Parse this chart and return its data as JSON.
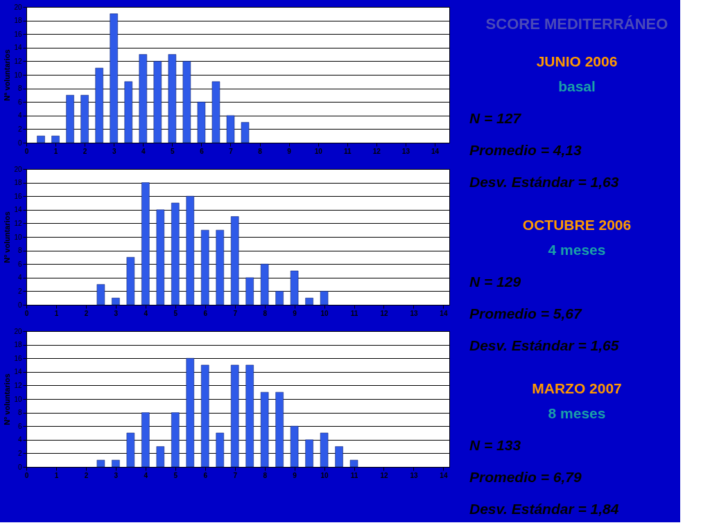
{
  "chart_data": [
    {
      "type": "bar",
      "ylabel": "Nª voluntarios",
      "x": [
        0.5,
        1,
        1.5,
        2,
        2.5,
        3,
        3.5,
        4,
        4.5,
        5,
        5.5,
        6,
        6.5,
        7,
        7.5
      ],
      "values": [
        1,
        1,
        7,
        7,
        11,
        19,
        9,
        13,
        12,
        13,
        12,
        6,
        9,
        4,
        3
      ],
      "color": "#2f5ae8",
      "xlim": [
        0,
        14.5
      ],
      "xticks": [
        0,
        1,
        2,
        3,
        4,
        5,
        6,
        7,
        8,
        9,
        10,
        11,
        12,
        13,
        14
      ],
      "ylim": [
        0,
        20
      ],
      "yticks": [
        0,
        2,
        4,
        6,
        8,
        10,
        12,
        14,
        16,
        18,
        20
      ],
      "grid": "y"
    },
    {
      "type": "bar",
      "ylabel": "Nº voluntarios",
      "x": [
        2.5,
        3,
        3.5,
        4,
        4.5,
        5,
        5.5,
        6,
        6.5,
        7,
        7.5,
        8,
        8.5,
        9,
        9.5,
        10
      ],
      "values": [
        3,
        1,
        7,
        18,
        14,
        15,
        16,
        11,
        11,
        13,
        4,
        6,
        2,
        5,
        1,
        2
      ],
      "color": "#2f5ae8",
      "xlim": [
        0,
        14.2
      ],
      "xticks": [
        0,
        1,
        2,
        3,
        4,
        5,
        6,
        7,
        8,
        9,
        10,
        11,
        12,
        13,
        14
      ],
      "ylim": [
        0,
        20
      ],
      "yticks": [
        0,
        2,
        4,
        6,
        8,
        10,
        12,
        14,
        16,
        18,
        20
      ],
      "grid": "y"
    },
    {
      "type": "bar",
      "ylabel": "Nº voluntarios",
      "x": [
        2.5,
        3,
        3.5,
        4,
        4.5,
        5,
        5.5,
        6,
        6.5,
        7,
        7.5,
        8,
        8.5,
        9,
        9.5,
        10,
        10.5,
        11
      ],
      "values": [
        1,
        1,
        5,
        8,
        3,
        8,
        16,
        15,
        5,
        15,
        15,
        11,
        11,
        6,
        4,
        5,
        3,
        1
      ],
      "color": "#2f5ae8",
      "xlim": [
        0,
        14.2
      ],
      "xticks": [
        0,
        1,
        2,
        3,
        4,
        5,
        6,
        7,
        8,
        9,
        10,
        11,
        12,
        13,
        14
      ],
      "ylim": [
        0,
        20
      ],
      "yticks": [
        0,
        2,
        4,
        6,
        8,
        10,
        12,
        14,
        16,
        18,
        20
      ],
      "grid": "y"
    },
    {
      "type": "other",
      "title": "SCORE MEDITERRÁNEO",
      "annotations": [
        "JUNIO 2006",
        "basal",
        "N = 127",
        "Promedio = 4,13",
        "Desv. Estándar = 1,63",
        "OCTUBRE 2006",
        "4 meses",
        "N = 129",
        "Promedio = 5,67",
        "Desv. Estándar = 1,65",
        "MARZO 2007",
        "8 meses",
        "N = 133",
        "Promedio = 6,79",
        "Desv. Estándar = 1,84"
      ]
    }
  ]
}
